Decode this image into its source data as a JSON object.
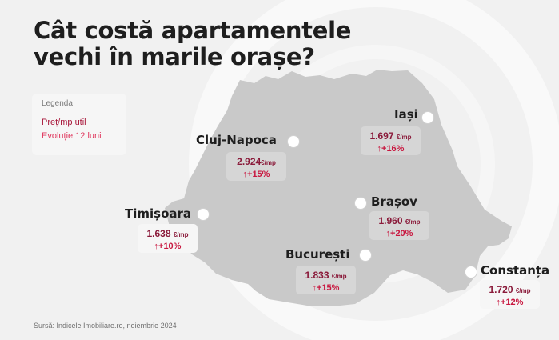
{
  "title": {
    "line1": "Cât costă apartamentele",
    "line2": "vechi în marile orașe?"
  },
  "legend": {
    "title": "Legenda",
    "price_label": "Preț/mp util",
    "evolution_label": "Evoluție 12 luni"
  },
  "colors": {
    "background": "#f1f1f1",
    "map_fill": "#c9c9c9",
    "price_text": "#8a1a3a",
    "evolution_text": "#c8173f"
  },
  "cities": {
    "iasi": {
      "name": "Iași",
      "price": "1.697",
      "unit": "€/mp",
      "evolution": "↑+16%"
    },
    "cluj": {
      "name": "Cluj-Napoca",
      "price": "2.924",
      "unit": "€/mp",
      "evolution": "↑+15%"
    },
    "brasov": {
      "name": "Brașov",
      "price": "1.960",
      "unit": "€/mp",
      "evolution": "↑+20%"
    },
    "timisoara": {
      "name": "Timișoara",
      "price": "1.638",
      "unit": "€/mp",
      "evolution": "↑+10%"
    },
    "bucuresti": {
      "name": "București",
      "price": "1.833",
      "unit": "€/mp",
      "evolution": "↑+15%"
    },
    "constanta": {
      "name": "Constanța",
      "price": "1.720",
      "unit": "€/mp",
      "evolution": "↑+12%"
    }
  },
  "source": "Sursă: Indicele Imobiliare.ro, noiembrie 2024"
}
